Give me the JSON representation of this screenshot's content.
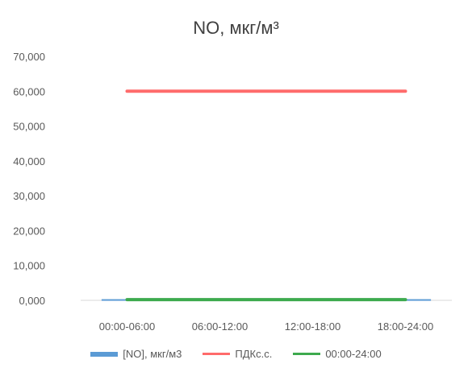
{
  "chart_data": {
    "type": "line",
    "title": "NO, мкг/м³",
    "categories": [
      "00:00-06:00",
      "06:00-12:00",
      "12:00-18:00",
      "18:00-24:00"
    ],
    "y_tick_labels": [
      "0,000",
      "10,000",
      "20,000",
      "30,000",
      "40,000",
      "50,000",
      "60,000",
      "70,000"
    ],
    "ylim": [
      0,
      70
    ],
    "grid": false,
    "legend_position": "bottom",
    "series": [
      {
        "name": "[NO], мкг/м3",
        "kind": "bar",
        "values": [
          0.1,
          0.1,
          0.1,
          0.1
        ],
        "color": "#5b9bd5"
      },
      {
        "name": "ПДКс.с.",
        "kind": "line",
        "values": [
          60,
          60,
          60,
          60
        ],
        "color": "#ff6b6b"
      },
      {
        "name": "00:00-24:00",
        "kind": "line",
        "values": [
          0.2,
          0.2,
          0.2,
          0.2
        ],
        "color": "#3daa4e"
      }
    ]
  }
}
